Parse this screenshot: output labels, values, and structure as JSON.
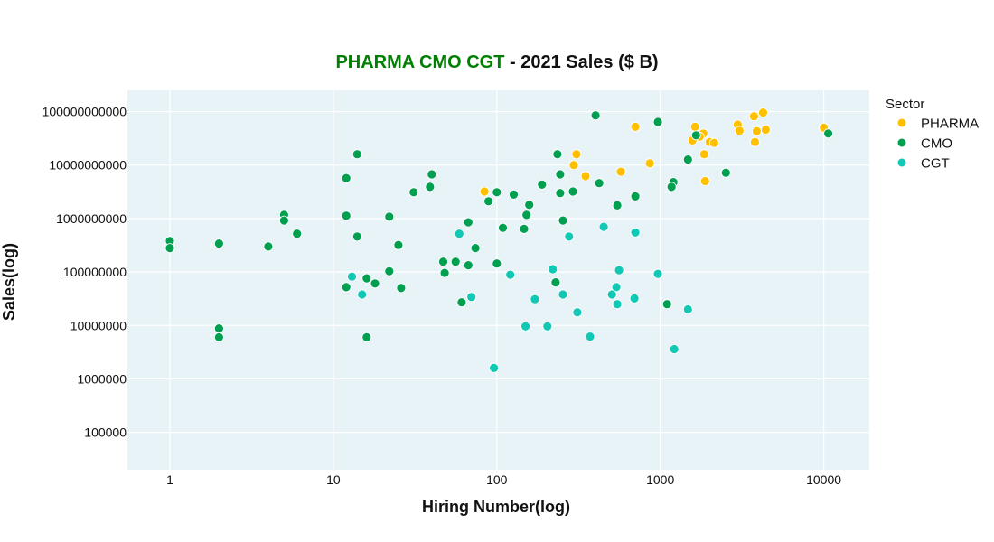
{
  "chart_data": {
    "type": "scatter",
    "title": {
      "highlight": "PHARMA CMO CGT",
      "highlight_color": "#008000",
      "rest": " - 2021 Sales ($ B)"
    },
    "xlabel": "Hiring Number(log)",
    "ylabel": "Sales(log)",
    "xscale": "log",
    "yscale": "log",
    "xlim": [
      0.55,
      19000
    ],
    "ylim": [
      20000,
      250000000000
    ],
    "xticks": [
      1,
      10,
      100,
      1000,
      10000
    ],
    "xtick_labels": [
      "1",
      "10",
      "100",
      "1000",
      "10000"
    ],
    "yticks": [
      100000,
      1000000,
      10000000,
      100000000,
      1000000000,
      10000000000,
      100000000000
    ],
    "ytick_labels": [
      "100000",
      "1000000",
      "10000000",
      "100000000",
      "1000000000",
      "10000000000",
      "100000000000"
    ],
    "grid": true,
    "plot_background": "#E8F3F8",
    "legend": {
      "title": "Sector",
      "placement": "top-right-outside"
    },
    "series": [
      {
        "name": "PHARMA",
        "color": "#FFC000",
        "points": [
          [
            84,
            3200000000.0
          ],
          [
            307,
            16000000000.0
          ],
          [
            296,
            10000000000.0
          ],
          [
            349,
            6200000000.0
          ],
          [
            574,
            7500000000.0
          ],
          [
            704,
            52000000000.0
          ],
          [
            863,
            10800000000.0
          ],
          [
            1634,
            52000000000.0
          ],
          [
            1834,
            39000000000.0
          ],
          [
            1742,
            34000000000.0
          ],
          [
            1574,
            29000000000.0
          ],
          [
            2004,
            27000000000.0
          ],
          [
            2138,
            26000000000.0
          ],
          [
            1858,
            16000000000.0
          ],
          [
            1881,
            5000000000.0
          ],
          [
            2977,
            57000000000.0
          ],
          [
            3054,
            44000000000.0
          ],
          [
            3743,
            82000000000.0
          ],
          [
            4256,
            96000000000.0
          ],
          [
            3892,
            43000000000.0
          ],
          [
            4419,
            46000000000.0
          ],
          [
            3793,
            27000000000.0
          ],
          [
            10000,
            50000000000.0
          ]
        ]
      },
      {
        "name": "CMO",
        "color": "#00A050",
        "points": [
          [
            1,
            380000000.0
          ],
          [
            1,
            280000000.0
          ],
          [
            2,
            340000000.0
          ],
          [
            4,
            300000000.0
          ],
          [
            5,
            1170000000.0
          ],
          [
            5,
            920000000.0
          ],
          [
            6,
            520000000.0
          ],
          [
            2,
            8800000.0
          ],
          [
            2,
            6000000.0
          ],
          [
            14,
            16000000000.0
          ],
          [
            12,
            5700000000.0
          ],
          [
            40,
            6700000000.0
          ],
          [
            39,
            3900000000.0
          ],
          [
            31,
            3100000000.0
          ],
          [
            89,
            2100000000.0
          ],
          [
            12,
            1130000000.0
          ],
          [
            22,
            1080000000.0
          ],
          [
            67,
            850000000.0
          ],
          [
            14,
            460000000.0
          ],
          [
            25,
            320000000.0
          ],
          [
            74,
            280000000.0
          ],
          [
            47,
            156000000.0
          ],
          [
            56,
            156000000.0
          ],
          [
            67,
            134000000.0
          ],
          [
            22,
            103000000.0
          ],
          [
            48,
            96000000.0
          ],
          [
            16,
            76000000.0
          ],
          [
            18,
            61000000.0
          ],
          [
            12,
            52000000.0
          ],
          [
            26,
            50000000.0
          ],
          [
            61,
            27000000.0
          ],
          [
            16,
            6000000.0
          ],
          [
            402,
            85000000000.0
          ],
          [
            235,
            16000000000.0
          ],
          [
            244,
            6700000000.0
          ],
          [
            423,
            4600000000.0
          ],
          [
            189,
            4300000000.0
          ],
          [
            100,
            3100000000.0
          ],
          [
            127,
            2800000000.0
          ],
          [
            244,
            3000000000.0
          ],
          [
            292,
            3200000000.0
          ],
          [
            704,
            2600000000.0
          ],
          [
            158,
            1800000000.0
          ],
          [
            546,
            1760000000.0
          ],
          [
            152,
            1170000000.0
          ],
          [
            254,
            920000000.0
          ],
          [
            109,
            670000000.0
          ],
          [
            147,
            640000000.0
          ],
          [
            100,
            144000000.0
          ],
          [
            229,
            64000000.0
          ],
          [
            968,
            64000000000.0
          ],
          [
            1655,
            36000000000.0
          ],
          [
            1476,
            12700000000.0
          ],
          [
            2522,
            7200000000.0
          ],
          [
            1203,
            4800000000.0
          ],
          [
            1173,
            3900000000.0
          ],
          [
            1101,
            25000000.0
          ],
          [
            10667,
            39000000000.0
          ]
        ]
      },
      {
        "name": "CGT",
        "color": "#10C8B4",
        "points": [
          [
            59,
            520000000.0
          ],
          [
            13,
            82000000.0
          ],
          [
            15,
            38000000.0
          ],
          [
            70,
            34000000.0
          ],
          [
            96,
            1600000.0
          ],
          [
            121,
            89000000.0
          ],
          [
            220,
            113000000.0
          ],
          [
            277,
            460000000.0
          ],
          [
            451,
            700000000.0
          ],
          [
            704,
            550000000.0
          ],
          [
            560,
            108000000.0
          ],
          [
            539,
            52000000.0
          ],
          [
            150,
            9600000.0
          ],
          [
            204,
            9600000.0
          ],
          [
            372,
            6200000.0
          ],
          [
            311,
            17600000.0
          ],
          [
            171,
            31000000.0
          ],
          [
            254,
            38000000.0
          ],
          [
            546,
            25000000.0
          ],
          [
            506,
            38000000.0
          ],
          [
            695,
            32000000.0
          ],
          [
            968,
            92000000.0
          ],
          [
            1476,
            20000000.0
          ],
          [
            1218,
            3600000.0
          ]
        ]
      }
    ]
  }
}
